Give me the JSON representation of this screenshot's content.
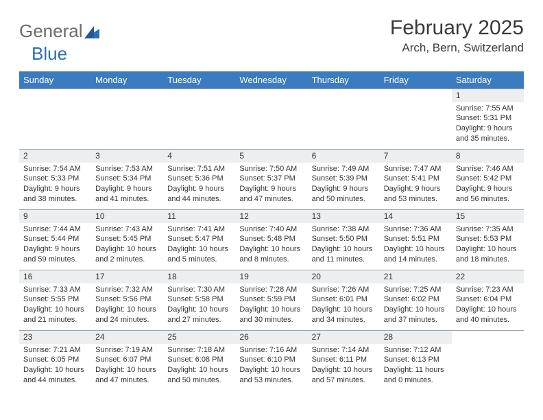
{
  "logo": {
    "part1": "General",
    "part2": "Blue"
  },
  "title": {
    "month": "February 2025",
    "location": "Arch, Bern, Switzerland"
  },
  "colors": {
    "header_blue": "#3b7bbf",
    "logo_gray": "#6b6b6b",
    "logo_blue": "#2b6fb3",
    "border": "#9aa4af",
    "daynum_bg": "#eceeef",
    "text": "#333333",
    "white": "#ffffff"
  },
  "typography": {
    "title_fontsize": 30,
    "location_fontsize": 17,
    "logo_fontsize": 26,
    "dow_fontsize": 13,
    "daynum_fontsize": 12,
    "body_fontsize": 11
  },
  "days_of_week": [
    "Sunday",
    "Monday",
    "Tuesday",
    "Wednesday",
    "Thursday",
    "Friday",
    "Saturday"
  ],
  "weeks": [
    [
      {
        "day": "",
        "sunrise": "",
        "sunset": "",
        "daylight1": "",
        "daylight2": ""
      },
      {
        "day": "",
        "sunrise": "",
        "sunset": "",
        "daylight1": "",
        "daylight2": ""
      },
      {
        "day": "",
        "sunrise": "",
        "sunset": "",
        "daylight1": "",
        "daylight2": ""
      },
      {
        "day": "",
        "sunrise": "",
        "sunset": "",
        "daylight1": "",
        "daylight2": ""
      },
      {
        "day": "",
        "sunrise": "",
        "sunset": "",
        "daylight1": "",
        "daylight2": ""
      },
      {
        "day": "",
        "sunrise": "",
        "sunset": "",
        "daylight1": "",
        "daylight2": ""
      },
      {
        "day": "1",
        "sunrise": "Sunrise: 7:55 AM",
        "sunset": "Sunset: 5:31 PM",
        "daylight1": "Daylight: 9 hours",
        "daylight2": "and 35 minutes."
      }
    ],
    [
      {
        "day": "2",
        "sunrise": "Sunrise: 7:54 AM",
        "sunset": "Sunset: 5:33 PM",
        "daylight1": "Daylight: 9 hours",
        "daylight2": "and 38 minutes."
      },
      {
        "day": "3",
        "sunrise": "Sunrise: 7:53 AM",
        "sunset": "Sunset: 5:34 PM",
        "daylight1": "Daylight: 9 hours",
        "daylight2": "and 41 minutes."
      },
      {
        "day": "4",
        "sunrise": "Sunrise: 7:51 AM",
        "sunset": "Sunset: 5:36 PM",
        "daylight1": "Daylight: 9 hours",
        "daylight2": "and 44 minutes."
      },
      {
        "day": "5",
        "sunrise": "Sunrise: 7:50 AM",
        "sunset": "Sunset: 5:37 PM",
        "daylight1": "Daylight: 9 hours",
        "daylight2": "and 47 minutes."
      },
      {
        "day": "6",
        "sunrise": "Sunrise: 7:49 AM",
        "sunset": "Sunset: 5:39 PM",
        "daylight1": "Daylight: 9 hours",
        "daylight2": "and 50 minutes."
      },
      {
        "day": "7",
        "sunrise": "Sunrise: 7:47 AM",
        "sunset": "Sunset: 5:41 PM",
        "daylight1": "Daylight: 9 hours",
        "daylight2": "and 53 minutes."
      },
      {
        "day": "8",
        "sunrise": "Sunrise: 7:46 AM",
        "sunset": "Sunset: 5:42 PM",
        "daylight1": "Daylight: 9 hours",
        "daylight2": "and 56 minutes."
      }
    ],
    [
      {
        "day": "9",
        "sunrise": "Sunrise: 7:44 AM",
        "sunset": "Sunset: 5:44 PM",
        "daylight1": "Daylight: 9 hours",
        "daylight2": "and 59 minutes."
      },
      {
        "day": "10",
        "sunrise": "Sunrise: 7:43 AM",
        "sunset": "Sunset: 5:45 PM",
        "daylight1": "Daylight: 10 hours",
        "daylight2": "and 2 minutes."
      },
      {
        "day": "11",
        "sunrise": "Sunrise: 7:41 AM",
        "sunset": "Sunset: 5:47 PM",
        "daylight1": "Daylight: 10 hours",
        "daylight2": "and 5 minutes."
      },
      {
        "day": "12",
        "sunrise": "Sunrise: 7:40 AM",
        "sunset": "Sunset: 5:48 PM",
        "daylight1": "Daylight: 10 hours",
        "daylight2": "and 8 minutes."
      },
      {
        "day": "13",
        "sunrise": "Sunrise: 7:38 AM",
        "sunset": "Sunset: 5:50 PM",
        "daylight1": "Daylight: 10 hours",
        "daylight2": "and 11 minutes."
      },
      {
        "day": "14",
        "sunrise": "Sunrise: 7:36 AM",
        "sunset": "Sunset: 5:51 PM",
        "daylight1": "Daylight: 10 hours",
        "daylight2": "and 14 minutes."
      },
      {
        "day": "15",
        "sunrise": "Sunrise: 7:35 AM",
        "sunset": "Sunset: 5:53 PM",
        "daylight1": "Daylight: 10 hours",
        "daylight2": "and 18 minutes."
      }
    ],
    [
      {
        "day": "16",
        "sunrise": "Sunrise: 7:33 AM",
        "sunset": "Sunset: 5:55 PM",
        "daylight1": "Daylight: 10 hours",
        "daylight2": "and 21 minutes."
      },
      {
        "day": "17",
        "sunrise": "Sunrise: 7:32 AM",
        "sunset": "Sunset: 5:56 PM",
        "daylight1": "Daylight: 10 hours",
        "daylight2": "and 24 minutes."
      },
      {
        "day": "18",
        "sunrise": "Sunrise: 7:30 AM",
        "sunset": "Sunset: 5:58 PM",
        "daylight1": "Daylight: 10 hours",
        "daylight2": "and 27 minutes."
      },
      {
        "day": "19",
        "sunrise": "Sunrise: 7:28 AM",
        "sunset": "Sunset: 5:59 PM",
        "daylight1": "Daylight: 10 hours",
        "daylight2": "and 30 minutes."
      },
      {
        "day": "20",
        "sunrise": "Sunrise: 7:26 AM",
        "sunset": "Sunset: 6:01 PM",
        "daylight1": "Daylight: 10 hours",
        "daylight2": "and 34 minutes."
      },
      {
        "day": "21",
        "sunrise": "Sunrise: 7:25 AM",
        "sunset": "Sunset: 6:02 PM",
        "daylight1": "Daylight: 10 hours",
        "daylight2": "and 37 minutes."
      },
      {
        "day": "22",
        "sunrise": "Sunrise: 7:23 AM",
        "sunset": "Sunset: 6:04 PM",
        "daylight1": "Daylight: 10 hours",
        "daylight2": "and 40 minutes."
      }
    ],
    [
      {
        "day": "23",
        "sunrise": "Sunrise: 7:21 AM",
        "sunset": "Sunset: 6:05 PM",
        "daylight1": "Daylight: 10 hours",
        "daylight2": "and 44 minutes."
      },
      {
        "day": "24",
        "sunrise": "Sunrise: 7:19 AM",
        "sunset": "Sunset: 6:07 PM",
        "daylight1": "Daylight: 10 hours",
        "daylight2": "and 47 minutes."
      },
      {
        "day": "25",
        "sunrise": "Sunrise: 7:18 AM",
        "sunset": "Sunset: 6:08 PM",
        "daylight1": "Daylight: 10 hours",
        "daylight2": "and 50 minutes."
      },
      {
        "day": "26",
        "sunrise": "Sunrise: 7:16 AM",
        "sunset": "Sunset: 6:10 PM",
        "daylight1": "Daylight: 10 hours",
        "daylight2": "and 53 minutes."
      },
      {
        "day": "27",
        "sunrise": "Sunrise: 7:14 AM",
        "sunset": "Sunset: 6:11 PM",
        "daylight1": "Daylight: 10 hours",
        "daylight2": "and 57 minutes."
      },
      {
        "day": "28",
        "sunrise": "Sunrise: 7:12 AM",
        "sunset": "Sunset: 6:13 PM",
        "daylight1": "Daylight: 11 hours",
        "daylight2": "and 0 minutes."
      },
      {
        "day": "",
        "sunrise": "",
        "sunset": "",
        "daylight1": "",
        "daylight2": ""
      }
    ]
  ]
}
